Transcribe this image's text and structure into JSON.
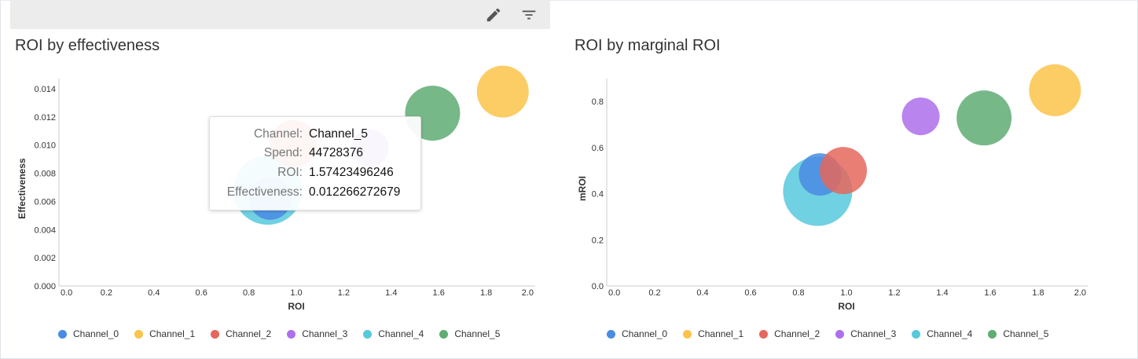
{
  "toolbar": {
    "edit_icon": "pencil-icon",
    "filter_icon": "filter-icon"
  },
  "colors": {
    "Channel_0": "#4a8be3",
    "Channel_1": "#fbc34a",
    "Channel_2": "#e5675c",
    "Channel_3": "#ae6fec",
    "Channel_4": "#56c9dc",
    "Channel_5": "#5fac74"
  },
  "legend": [
    "Channel_0",
    "Channel_1",
    "Channel_2",
    "Channel_3",
    "Channel_4",
    "Channel_5"
  ],
  "tooltip": {
    "rows": [
      {
        "key": "Channel:",
        "value": "Channel_5"
      },
      {
        "key": "Spend:",
        "value": "44728376"
      },
      {
        "key": "ROI:",
        "value": "1.57423496246"
      },
      {
        "key": "Effectiveness:",
        "value": "0.012266272679"
      }
    ]
  },
  "chart_data": [
    {
      "type": "scatter",
      "title": "ROI by effectiveness",
      "xlabel": "ROI",
      "ylabel": "Effectiveness",
      "xlim": [
        0,
        2.0
      ],
      "ylim": [
        0,
        0.014
      ],
      "xticks": [
        "0.0",
        "0.2",
        "0.4",
        "0.6",
        "0.8",
        "1.0",
        "1.2",
        "1.4",
        "1.6",
        "1.8",
        "2.0"
      ],
      "yticks": [
        "0.000",
        "0.002",
        "0.004",
        "0.006",
        "0.008",
        "0.010",
        "0.012",
        "0.014"
      ],
      "grid": false,
      "legend": "bottom",
      "points": [
        {
          "channel": "Channel_4",
          "roi": 0.88,
          "y": 0.0068,
          "spend": 70700000
        },
        {
          "channel": "Channel_0",
          "roi": 0.89,
          "y": 0.0062,
          "spend": 26600000
        },
        {
          "channel": "Channel_2",
          "roi": 0.987,
          "y": 0.0101,
          "spend": 32900000
        },
        {
          "channel": "Channel_3",
          "roi": 1.31,
          "y": 0.0098,
          "spend": 21000000
        },
        {
          "channel": "Channel_5",
          "roi": 1.57423496246,
          "y": 0.012266272679,
          "spend": 44728376
        },
        {
          "channel": "Channel_1",
          "roi": 1.87,
          "y": 0.0138,
          "spend": 39800000
        }
      ]
    },
    {
      "type": "scatter",
      "title": "ROI by marginal ROI",
      "xlabel": "ROI",
      "ylabel": "mROI",
      "xlim": [
        0,
        2.0
      ],
      "ylim": [
        0,
        0.9
      ],
      "xticks": [
        "0.0",
        "0.2",
        "0.4",
        "0.6",
        "0.8",
        "1.0",
        "1.2",
        "1.4",
        "1.6",
        "1.8",
        "2.0"
      ],
      "yticks": [
        "0.0",
        "0.2",
        "0.4",
        "0.6",
        "0.8"
      ],
      "grid": false,
      "legend": "bottom",
      "points": [
        {
          "channel": "Channel_4",
          "roi": 0.88,
          "y": 0.41,
          "spend": 70700000
        },
        {
          "channel": "Channel_0",
          "roi": 0.89,
          "y": 0.483,
          "spend": 26600000
        },
        {
          "channel": "Channel_2",
          "roi": 0.987,
          "y": 0.5,
          "spend": 32900000
        },
        {
          "channel": "Channel_3",
          "roi": 1.31,
          "y": 0.735,
          "spend": 21000000
        },
        {
          "channel": "Channel_5",
          "roi": 1.57423496246,
          "y": 0.728,
          "spend": 44728376
        },
        {
          "channel": "Channel_1",
          "roi": 1.87,
          "y": 0.848,
          "spend": 39800000
        }
      ]
    }
  ]
}
